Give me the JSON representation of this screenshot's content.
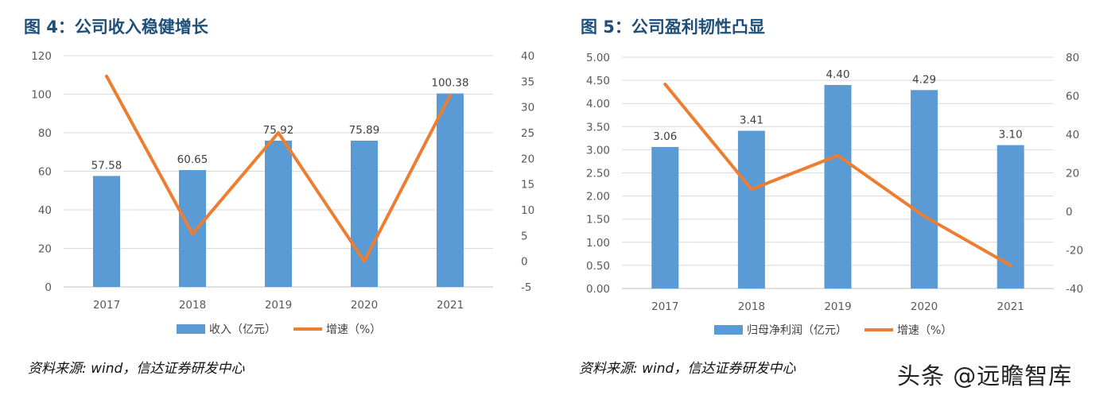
{
  "watermark": "头条 @远瞻智库",
  "colors": {
    "bar": "#5b9bd5",
    "line": "#ed7d31",
    "title": "#1f4e79",
    "axis": "#595959",
    "grid": "#d9d9d9"
  },
  "panels": [
    {
      "title": "图 4：公司收入稳健增长",
      "source": "资料来源: wind，信达证券研发中心"
    },
    {
      "title": "图 5：公司盈利韧性凸显",
      "source": "资料来源: wind，信达证券研发中心"
    }
  ],
  "chart_data": [
    {
      "type": "bar",
      "categories": [
        "2017",
        "2018",
        "2019",
        "2020",
        "2021"
      ],
      "series": [
        {
          "name": "收入（亿元）",
          "type": "bar",
          "axis": "left",
          "values": [
            57.58,
            60.65,
            75.92,
            75.89,
            100.38
          ],
          "labels": [
            "57.58",
            "60.65",
            "75.92",
            "75.89",
            "100.38"
          ]
        },
        {
          "name": "增速（%）",
          "type": "line",
          "axis": "right",
          "values": [
            36,
            5.3,
            25,
            0,
            32.3
          ]
        }
      ],
      "yleft": {
        "min": 0,
        "max": 120,
        "step": 20,
        "ticks": [
          "0",
          "20",
          "40",
          "60",
          "80",
          "100",
          "120"
        ]
      },
      "yright": {
        "min": -5,
        "max": 40,
        "step": 5,
        "ticks": [
          "-5",
          "0",
          "5",
          "10",
          "15",
          "20",
          "25",
          "30",
          "35",
          "40"
        ]
      },
      "grid": true,
      "legend": "bottom"
    },
    {
      "type": "bar",
      "categories": [
        "2017",
        "2018",
        "2019",
        "2020",
        "2021"
      ],
      "series": [
        {
          "name": "归母净利润（亿元）",
          "type": "bar",
          "axis": "left",
          "values": [
            3.06,
            3.41,
            4.4,
            4.29,
            3.1
          ],
          "labels": [
            "3.06",
            "3.41",
            "4.40",
            "4.29",
            "3.10"
          ]
        },
        {
          "name": "增速（%）",
          "type": "line",
          "axis": "right",
          "values": [
            66,
            11.5,
            29,
            -2.5,
            -28
          ]
        }
      ],
      "yleft": {
        "min": 0,
        "max": 5,
        "step": 0.5,
        "ticks": [
          "0.00",
          "0.50",
          "1.00",
          "1.50",
          "2.00",
          "2.50",
          "3.00",
          "3.50",
          "4.00",
          "4.50",
          "5.00"
        ]
      },
      "yright": {
        "min": -40,
        "max": 80,
        "step": 20,
        "ticks": [
          "-40",
          "-20",
          "0",
          "20",
          "40",
          "60",
          "80"
        ]
      },
      "grid": true,
      "legend": "bottom"
    }
  ]
}
